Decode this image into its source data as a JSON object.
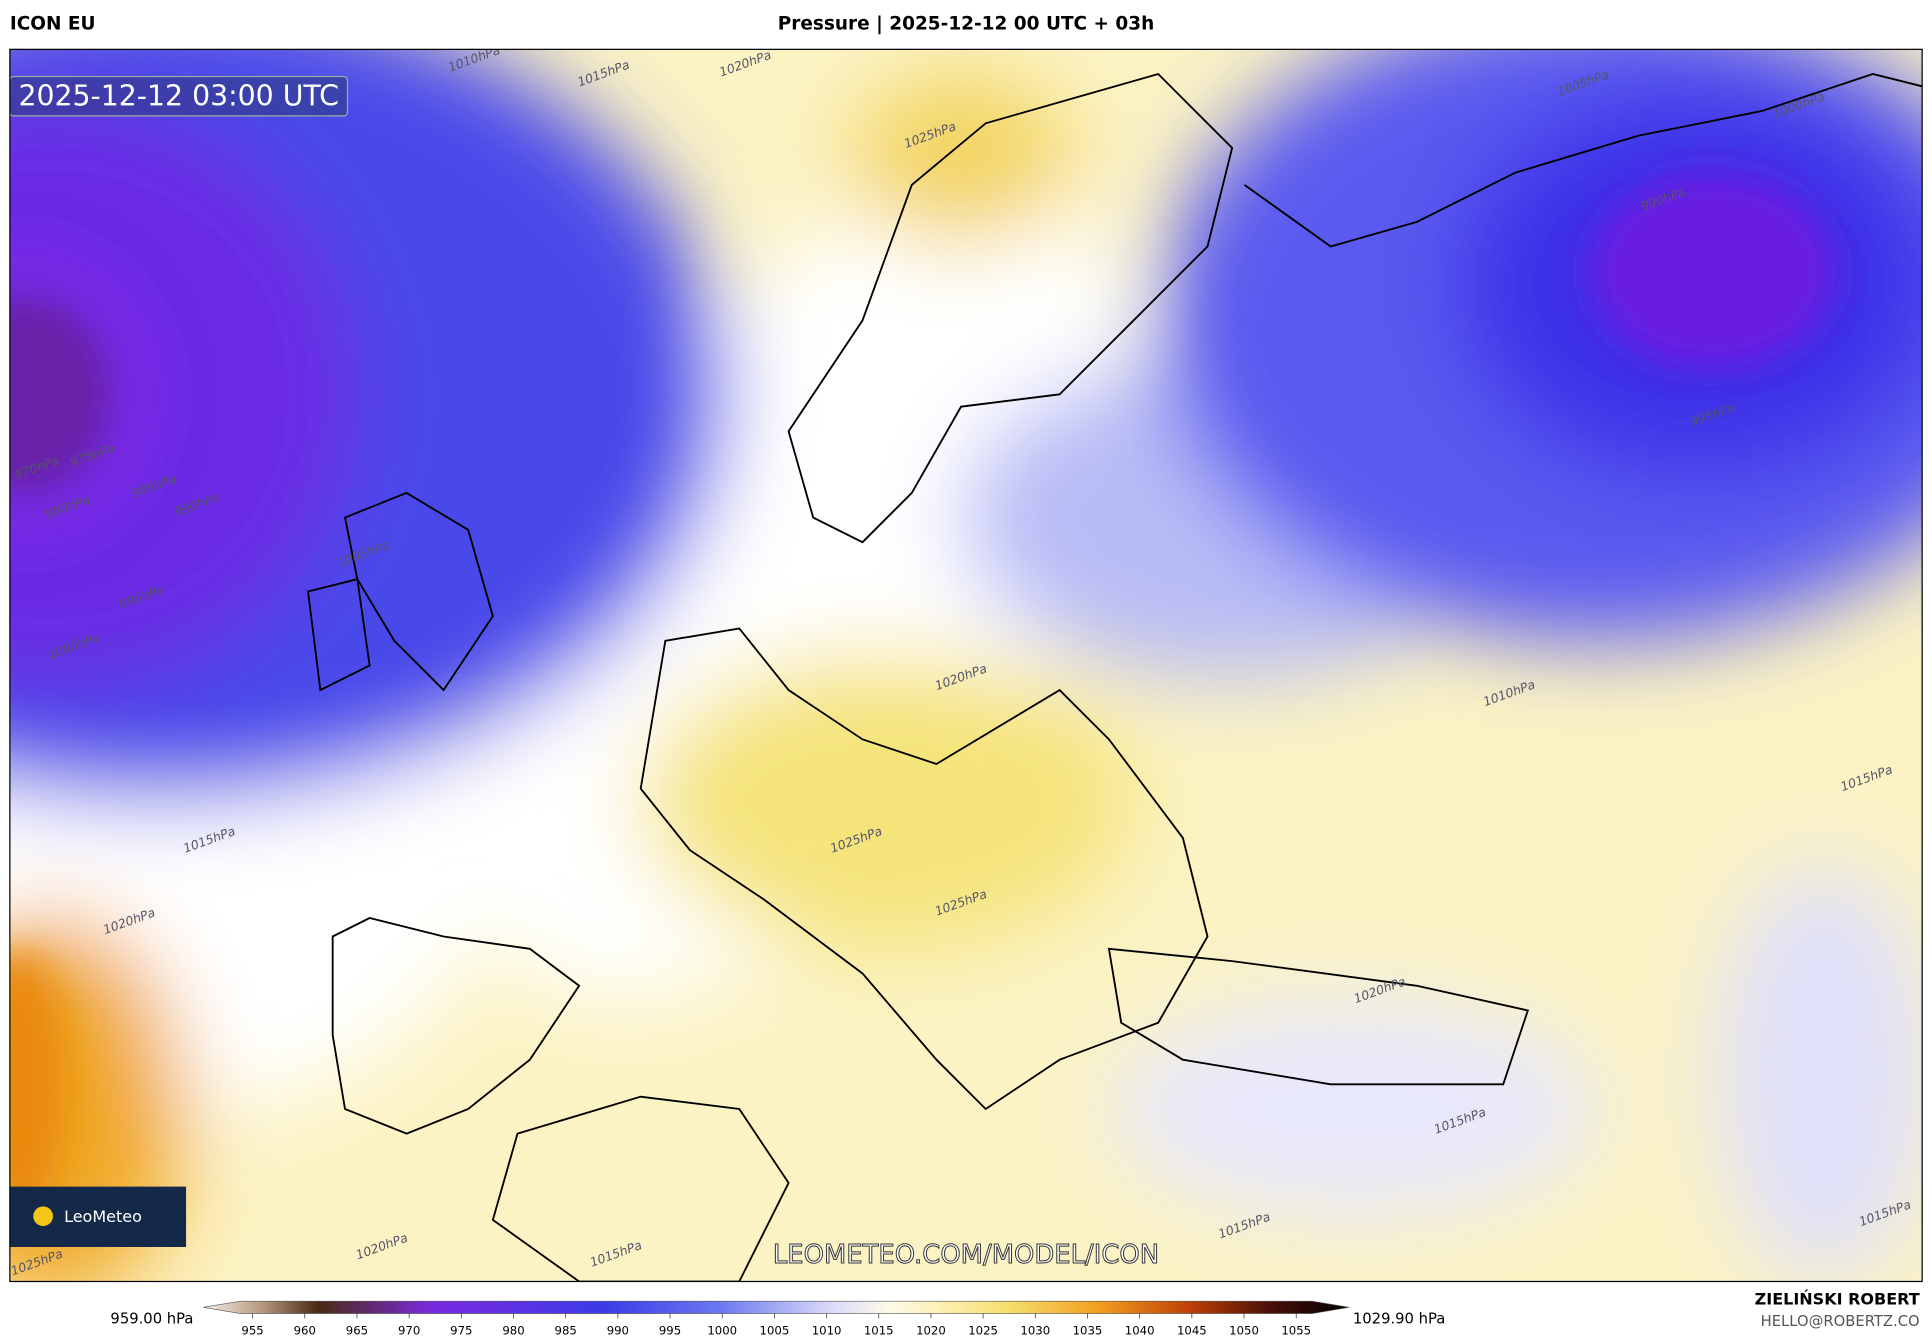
{
  "header": {
    "model": "ICON EU",
    "title": "Pressure | 2025-12-12 00 UTC + 03h"
  },
  "map": {
    "timestamp": "2025-12-12 03:00 UTC",
    "watermark": "LEOMETEO.COM/MODEL/ICON",
    "logo": "LeoMeteo",
    "isobar_labels": [
      "1000hPa",
      "995hPa",
      "990hPa",
      "985hPa",
      "980hPa",
      "970hPa",
      "975hPa",
      "1005hPa",
      "1010hPa",
      "1015hPa",
      "1020hPa",
      "1025hPa",
      "1020hPa",
      "1015hPa",
      "1020hPa",
      "1025hPa",
      "1025hPa",
      "1010hPa",
      "1005hPa",
      "1000hPa",
      "990hPa",
      "995hPa",
      "1015hPa",
      "1020hPa",
      "1015hPa",
      "1015hPa",
      "1015hPa",
      "1020hPa",
      "1025hPa",
      "1015hPa"
    ]
  },
  "legend": {
    "min_label": "959.00 hPa",
    "max_label": "1029.90 hPa",
    "ticks": [
      955,
      960,
      965,
      970,
      975,
      980,
      985,
      990,
      995,
      1000,
      1005,
      1010,
      1015,
      1020,
      1025,
      1030,
      1035,
      1040,
      1045,
      1050,
      1055
    ]
  },
  "footer": {
    "author": "ZIELIŃSKI ROBERT",
    "email": "HELLO@ROBERTZ.CO"
  }
}
